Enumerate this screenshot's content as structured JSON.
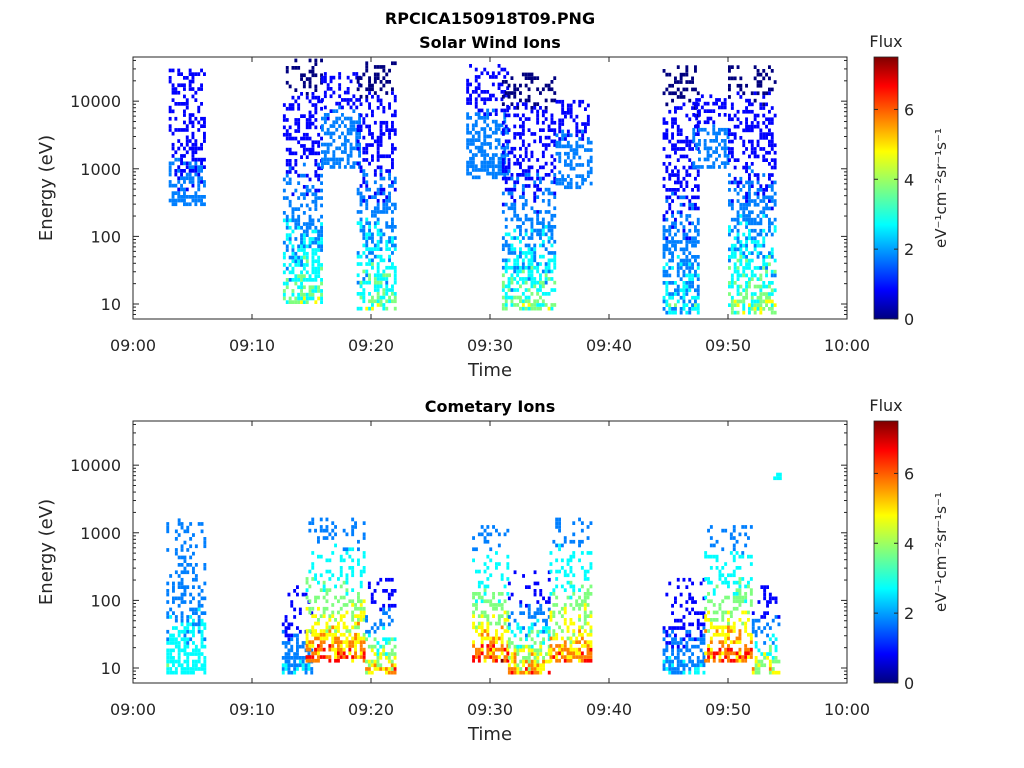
{
  "figure": {
    "title": "RPCICA150918T09.PNG"
  },
  "colormap": [
    "#00007f",
    "#0000ff",
    "#007fff",
    "#00ffff",
    "#7fff7f",
    "#ffff00",
    "#ff7f00",
    "#ff0000",
    "#7f0000"
  ],
  "chart_data": [
    {
      "type": "heatmap",
      "title": "Solar Wind Ions",
      "xlabel": "Time",
      "ylabel": "Energy (eV)",
      "xlim": [
        "09:00",
        "10:00"
      ],
      "ylim": [
        6,
        45000
      ],
      "yscale": "log",
      "xticks": [
        "09:00",
        "09:10",
        "09:20",
        "09:30",
        "09:40",
        "09:50",
        "10:00"
      ],
      "yticks": [
        "10",
        "100",
        "1000",
        "10000"
      ],
      "colorbar": {
        "label": "Flux",
        "unit": "eV⁻¹cm⁻²sr⁻¹s⁻¹",
        "range": [
          0,
          7.5
        ],
        "ticks": [
          "0",
          "2",
          "4",
          "6"
        ]
      },
      "clusters": [
        {
          "t_start": 3.0,
          "t_end": 6.0,
          "e_low": 280,
          "e_high": 28000,
          "flux": [
            0.8,
            2.0
          ]
        },
        {
          "t_start": 12.6,
          "t_end": 15.8,
          "e_low": 10,
          "e_high": 38000,
          "flux": [
            0.3,
            4.5
          ]
        },
        {
          "t_start": 15.8,
          "t_end": 19.0,
          "e_low": 1000,
          "e_high": 25000,
          "flux": [
            1.2,
            2.2
          ]
        },
        {
          "t_start": 18.8,
          "t_end": 22.0,
          "e_low": 8,
          "e_high": 38000,
          "flux": [
            0.3,
            4.5
          ]
        },
        {
          "t_start": 28.0,
          "t_end": 31.5,
          "e_low": 700,
          "e_high": 35000,
          "flux": [
            1.2,
            2.2
          ]
        },
        {
          "t_start": 31.0,
          "t_end": 35.5,
          "e_low": 8,
          "e_high": 25000,
          "flux": [
            0.3,
            4.5
          ]
        },
        {
          "t_start": 35.5,
          "t_end": 38.5,
          "e_low": 500,
          "e_high": 10000,
          "flux": [
            1.2,
            2.2
          ]
        },
        {
          "t_start": 44.5,
          "t_end": 47.5,
          "e_low": 7,
          "e_high": 30000,
          "flux": [
            0.3,
            3.5
          ]
        },
        {
          "t_start": 47.0,
          "t_end": 50.0,
          "e_low": 1000,
          "e_high": 12000,
          "flux": [
            1.2,
            2.2
          ]
        },
        {
          "t_start": 50.0,
          "t_end": 54.0,
          "e_low": 7,
          "e_high": 32000,
          "flux": [
            0.3,
            4.8
          ]
        }
      ]
    },
    {
      "type": "heatmap",
      "title": "Cometary Ions",
      "xlabel": "Time",
      "ylabel": "Energy (eV)",
      "xlim": [
        "09:00",
        "10:00"
      ],
      "ylim": [
        6,
        45000
      ],
      "yscale": "log",
      "xticks": [
        "09:00",
        "09:10",
        "09:20",
        "09:30",
        "09:40",
        "09:50",
        "10:00"
      ],
      "yticks": [
        "10",
        "100",
        "1000",
        "10000"
      ],
      "colorbar": {
        "label": "Flux",
        "unit": "eV⁻¹cm⁻²sr⁻¹s⁻¹",
        "range": [
          0,
          7.5
        ],
        "ticks": [
          "0",
          "2",
          "4",
          "6"
        ]
      },
      "clusters": [
        {
          "t_start": 2.8,
          "t_end": 6.0,
          "e_low": 8,
          "e_high": 1500,
          "flux": [
            1.5,
            3.5
          ]
        },
        {
          "t_start": 12.5,
          "t_end": 15.0,
          "e_low": 8,
          "e_high": 150,
          "flux": [
            0.5,
            3.0
          ]
        },
        {
          "t_start": 14.5,
          "t_end": 19.5,
          "e_low": 12,
          "e_high": 1600,
          "flux": [
            2.0,
            7.0
          ]
        },
        {
          "t_start": 19.5,
          "t_end": 22.0,
          "e_low": 8,
          "e_high": 200,
          "flux": [
            0.5,
            6.5
          ]
        },
        {
          "t_start": 28.5,
          "t_end": 31.5,
          "e_low": 12,
          "e_high": 1200,
          "flux": [
            2.0,
            7.2
          ]
        },
        {
          "t_start": 31.5,
          "t_end": 35.0,
          "e_low": 8,
          "e_high": 250,
          "flux": [
            0.5,
            7.0
          ]
        },
        {
          "t_start": 35.0,
          "t_end": 38.5,
          "e_low": 12,
          "e_high": 1600,
          "flux": [
            2.0,
            6.8
          ]
        },
        {
          "t_start": 44.5,
          "t_end": 48.0,
          "e_low": 8,
          "e_high": 200,
          "flux": [
            0.5,
            3.0
          ]
        },
        {
          "t_start": 48.0,
          "t_end": 52.0,
          "e_low": 12,
          "e_high": 1300,
          "flux": [
            2.0,
            7.2
          ]
        },
        {
          "t_start": 52.0,
          "t_end": 54.2,
          "e_low": 8,
          "e_high": 150,
          "flux": [
            0.5,
            6.0
          ]
        },
        {
          "t_start": 53.8,
          "t_end": 54.3,
          "e_low": 6000,
          "e_high": 7500,
          "flux": [
            2.5,
            2.5
          ]
        }
      ]
    }
  ]
}
